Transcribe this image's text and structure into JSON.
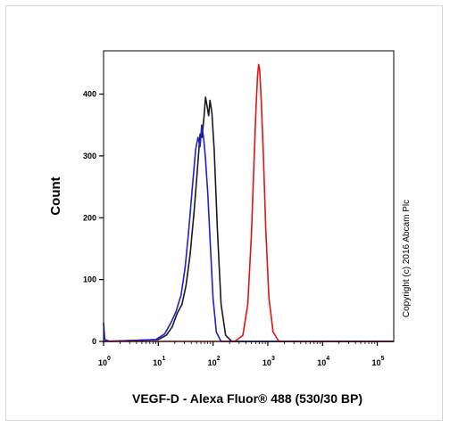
{
  "chart_data": {
    "type": "line",
    "xlabel": "VEGF-D - Alexa Fluor® 488 (530/30 BP)",
    "ylabel": "Count",
    "x_scale": "log",
    "xlim": [
      1,
      200000
    ],
    "ylim": [
      0,
      470
    ],
    "x_ticks": [
      {
        "base": "10",
        "exp": "0",
        "value": 1
      },
      {
        "base": "10",
        "exp": "1",
        "value": 10
      },
      {
        "base": "10",
        "exp": "2",
        "value": 100
      },
      {
        "base": "10",
        "exp": "3",
        "value": 1000
      },
      {
        "base": "10",
        "exp": "4",
        "value": 10000
      },
      {
        "base": "10",
        "exp": "5",
        "value": 100000
      }
    ],
    "y_ticks": [
      "0",
      "100",
      "200",
      "300",
      "400"
    ],
    "y_tick_values": [
      0,
      100,
      200,
      300,
      400
    ],
    "grid": false,
    "series": [
      {
        "color": "#1a1a1a",
        "points": [
          [
            1,
            0
          ],
          [
            10,
            3
          ],
          [
            14,
            10
          ],
          [
            18,
            24
          ],
          [
            22,
            45
          ],
          [
            27,
            60
          ],
          [
            32,
            90
          ],
          [
            38,
            140
          ],
          [
            45,
            210
          ],
          [
            52,
            280
          ],
          [
            58,
            335
          ],
          [
            63,
            330
          ],
          [
            68,
            360
          ],
          [
            73,
            395
          ],
          [
            78,
            380
          ],
          [
            83,
            365
          ],
          [
            88,
            390
          ],
          [
            95,
            370
          ],
          [
            105,
            310
          ],
          [
            120,
            180
          ],
          [
            140,
            60
          ],
          [
            170,
            10
          ],
          [
            220,
            0
          ],
          [
            200000,
            0
          ]
        ]
      },
      {
        "color": "#1f1fcc",
        "points": [
          [
            1,
            30
          ],
          [
            1.05,
            3
          ],
          [
            1.3,
            0
          ],
          [
            9,
            3
          ],
          [
            13,
            12
          ],
          [
            17,
            30
          ],
          [
            21,
            48
          ],
          [
            26,
            75
          ],
          [
            31,
            120
          ],
          [
            36,
            180
          ],
          [
            42,
            250
          ],
          [
            48,
            310
          ],
          [
            53,
            330
          ],
          [
            58,
            315
          ],
          [
            62,
            350
          ],
          [
            67,
            330
          ],
          [
            72,
            300
          ],
          [
            80,
            240
          ],
          [
            90,
            150
          ],
          [
            100,
            70
          ],
          [
            115,
            15
          ],
          [
            140,
            0
          ],
          [
            200000,
            0
          ]
        ]
      },
      {
        "color": "#e01414",
        "points": [
          [
            1,
            0
          ],
          [
            250,
            0
          ],
          [
            350,
            10
          ],
          [
            430,
            60
          ],
          [
            500,
            170
          ],
          [
            560,
            290
          ],
          [
            610,
            380
          ],
          [
            650,
            430
          ],
          [
            680,
            448
          ],
          [
            710,
            440
          ],
          [
            760,
            390
          ],
          [
            830,
            300
          ],
          [
            920,
            180
          ],
          [
            1050,
            70
          ],
          [
            1250,
            15
          ],
          [
            1600,
            0
          ],
          [
            200000,
            0
          ]
        ]
      }
    ]
  },
  "copyright": "Copyright (c) 2016 Abcam Plc"
}
